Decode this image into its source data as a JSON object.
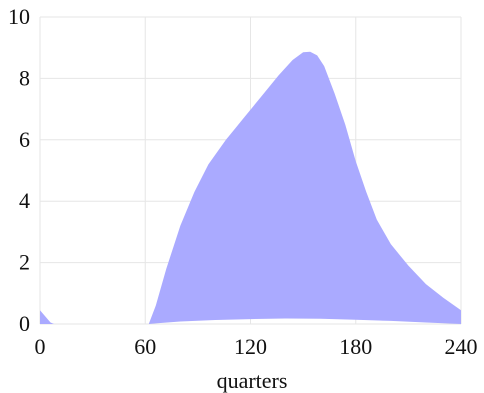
{
  "chart_data": {
    "type": "area",
    "title": "",
    "xlabel": "quarters",
    "ylabel": "",
    "xlim": [
      0,
      240
    ],
    "ylim": [
      0,
      10
    ],
    "x_ticks": [
      0,
      60,
      120,
      180,
      240
    ],
    "x_tick_labels": [
      "0",
      "60",
      "120",
      "180",
      "240"
    ],
    "y_ticks": [
      0,
      2,
      4,
      6,
      8,
      10
    ],
    "y_tick_labels": [
      "0",
      "2",
      "4",
      "6",
      "8",
      "10"
    ],
    "grid": true,
    "legend": "none",
    "fill_color": "#aaaaff",
    "series": [
      {
        "kind": "band",
        "upper": [
          [
            0,
            0.45
          ],
          [
            3,
            0.25
          ],
          [
            6,
            0.05
          ],
          [
            8,
            0.0
          ],
          [
            60,
            0.0
          ],
          [
            62,
            0.0
          ],
          [
            66,
            0.6
          ],
          [
            72,
            1.8
          ],
          [
            80,
            3.2
          ],
          [
            88,
            4.3
          ],
          [
            96,
            5.2
          ],
          [
            106,
            6.0
          ],
          [
            116,
            6.7
          ],
          [
            126,
            7.4
          ],
          [
            136,
            8.1
          ],
          [
            144,
            8.6
          ],
          [
            150,
            8.85
          ],
          [
            154,
            8.87
          ],
          [
            158,
            8.75
          ],
          [
            162,
            8.4
          ],
          [
            168,
            7.5
          ],
          [
            174,
            6.5
          ],
          [
            180,
            5.3
          ],
          [
            186,
            4.3
          ],
          [
            192,
            3.4
          ],
          [
            200,
            2.6
          ],
          [
            210,
            1.9
          ],
          [
            220,
            1.3
          ],
          [
            230,
            0.85
          ],
          [
            240,
            0.45
          ]
        ],
        "lower": [
          [
            0,
            0.0
          ],
          [
            60,
            0.0
          ],
          [
            62,
            0.0
          ],
          [
            66,
            0.02
          ],
          [
            80,
            0.08
          ],
          [
            100,
            0.13
          ],
          [
            120,
            0.16
          ],
          [
            140,
            0.18
          ],
          [
            160,
            0.17
          ],
          [
            180,
            0.14
          ],
          [
            200,
            0.1
          ],
          [
            220,
            0.05
          ],
          [
            240,
            0.0
          ]
        ]
      }
    ]
  }
}
